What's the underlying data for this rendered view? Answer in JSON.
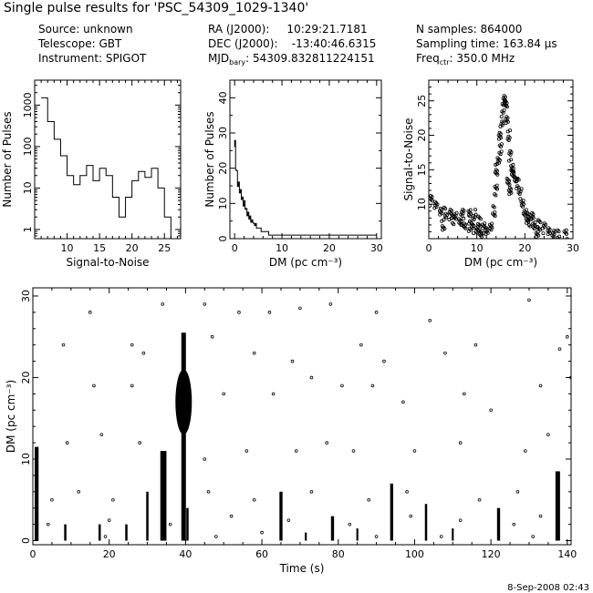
{
  "header": {
    "title": "Single pulse results for 'PSC_54309_1029-1340'",
    "col1": [
      "Source: unknown",
      "Telescope: GBT",
      "Instrument: SPIGOT"
    ],
    "ra": "RA (J2000):     10:29:21.7181",
    "dec": "DEC (J2000):    -13:40:46.6315",
    "mjd_label": "MJD",
    "mjd_sub": "bary",
    "mjd_value": ": 54309.832811224151",
    "nsamples": "N samples: 864000",
    "sampling": "Sampling time: 163.84 µs",
    "freq_label": "Freq",
    "freq_sub": "ctr",
    "freq_value": ": 350.0 MHz"
  },
  "footer": {
    "date": "8-Sep-2008 02:43"
  },
  "colors": {
    "ink": "#000000",
    "background": "#ffffff"
  },
  "chart_data": [
    {
      "type": "bar",
      "style": "step-histogram",
      "xlabel": "Signal-to-Noise",
      "ylabel": "Number of Pulses",
      "yscale": "log",
      "xlim": [
        5,
        27.5
      ],
      "ylim": [
        0.6,
        4000
      ],
      "xticks": [
        10,
        15,
        20,
        25
      ],
      "yticks": [
        1,
        10,
        100,
        1000
      ],
      "bin_edges": [
        6,
        7,
        8,
        9,
        10,
        11,
        12,
        13,
        14,
        15,
        16,
        17,
        18,
        19,
        20,
        21,
        22,
        23,
        24,
        25,
        26
      ],
      "values": [
        1500,
        400,
        150,
        60,
        20,
        12,
        20,
        35,
        15,
        30,
        20,
        6,
        2,
        6,
        15,
        25,
        18,
        30,
        10,
        2
      ]
    },
    {
      "type": "bar",
      "style": "step-histogram",
      "xlabel": "DM (pc cm⁻³)",
      "ylabel": "Number of Pulses",
      "xlim": [
        -1,
        31
      ],
      "ylim": [
        0,
        45
      ],
      "xticks": [
        0,
        10,
        20,
        30
      ],
      "yticks": [
        0,
        10,
        20,
        30,
        40
      ],
      "dm_step": 0.2,
      "values": [
        26,
        21,
        18,
        16,
        15,
        14,
        13,
        12,
        11,
        10,
        10,
        9,
        8,
        7,
        7,
        6,
        6,
        5,
        5,
        5,
        4,
        4,
        4,
        3,
        3,
        3,
        3,
        3,
        2,
        2,
        2,
        2,
        2,
        2,
        2,
        2,
        1,
        1,
        1,
        1,
        1,
        1,
        1,
        1,
        1,
        1,
        1,
        1,
        1,
        1,
        1,
        1,
        1,
        1,
        1,
        1,
        1,
        1,
        1,
        1,
        1,
        1,
        1,
        1,
        1,
        1,
        1,
        1,
        1,
        1,
        1,
        1,
        1,
        1,
        1,
        1,
        1,
        1,
        1,
        1,
        1,
        1,
        1,
        1,
        1,
        1,
        1,
        1,
        1,
        1,
        1,
        1,
        1,
        1,
        1,
        1,
        1,
        1,
        1,
        1,
        1,
        1,
        1,
        1,
        1,
        1,
        1,
        1,
        1,
        1,
        1,
        1,
        1,
        1,
        1,
        1,
        1,
        1,
        1,
        1,
        1,
        1,
        1,
        1,
        1,
        1,
        1,
        1,
        1,
        1,
        1,
        1,
        1,
        1,
        1,
        1,
        1,
        1,
        1,
        1,
        1,
        1,
        1,
        1,
        1,
        1,
        1,
        1,
        1,
        1
      ]
    },
    {
      "type": "scatter",
      "xlabel": "DM (pc cm⁻³)",
      "ylabel": "Signal-to-Noise",
      "xlim": [
        0,
        30
      ],
      "ylim": [
        5,
        28
      ],
      "xticks": [
        0,
        10,
        20,
        30
      ],
      "yticks": [
        10,
        15,
        20,
        25
      ],
      "points": [
        [
          0.5,
          10.5
        ],
        [
          1.5,
          9.8
        ],
        [
          2.5,
          9.2
        ],
        [
          3.5,
          8.8
        ],
        [
          4.5,
          8.5
        ],
        [
          5.5,
          8.0
        ],
        [
          6.5,
          7.5
        ],
        [
          7.5,
          7.2
        ],
        [
          8.5,
          6.8
        ],
        [
          9.2,
          6.5
        ],
        [
          10.0,
          6.2
        ],
        [
          10.8,
          6.0
        ],
        [
          3.0,
          7.0
        ],
        [
          5.0,
          7.8
        ],
        [
          7.0,
          8.5
        ],
        [
          8.5,
          8.8
        ],
        [
          9.5,
          8.5
        ],
        [
          10.5,
          7.5
        ],
        [
          11.5,
          6.5
        ],
        [
          12.0,
          6.0
        ],
        [
          13.0,
          7.0
        ],
        [
          13.5,
          9.0
        ],
        [
          14.0,
          12.0
        ],
        [
          14.5,
          16.0
        ],
        [
          14.8,
          20.0
        ],
        [
          15.2,
          22.0
        ],
        [
          15.5,
          24.0
        ],
        [
          15.8,
          25.0
        ],
        [
          16.0,
          24.5
        ],
        [
          16.3,
          22.5
        ],
        [
          16.6,
          20.0
        ],
        [
          17.0,
          17.0
        ],
        [
          17.3,
          15.0
        ],
        [
          17.5,
          14.5
        ],
        [
          18.0,
          14.0
        ],
        [
          18.5,
          13.0
        ],
        [
          19.0,
          11.5
        ],
        [
          19.5,
          10.0
        ],
        [
          20.0,
          9.0
        ],
        [
          20.5,
          8.0
        ],
        [
          21.0,
          7.5
        ],
        [
          21.5,
          8.0
        ],
        [
          22.0,
          7.0
        ],
        [
          22.5,
          6.0
        ],
        [
          23.0,
          7.0
        ],
        [
          24.0,
          6.5
        ],
        [
          25.0,
          6.0
        ],
        [
          26.0,
          6.0
        ],
        [
          27.0,
          5.5
        ],
        [
          28.5,
          5.5
        ],
        [
          16.5,
          13.0
        ],
        [
          17.0,
          12.0
        ],
        [
          14.0,
          15.0
        ],
        [
          15.0,
          18.0
        ]
      ]
    },
    {
      "type": "scatter",
      "xlabel": "Time (s)",
      "ylabel": "DM (pc cm⁻³)",
      "xlim": [
        0,
        141
      ],
      "ylim": [
        -0.5,
        31
      ],
      "xticks": [
        0,
        20,
        40,
        60,
        80,
        100,
        120,
        140
      ],
      "yticks": [
        0,
        10,
        20,
        30
      ],
      "pulse_columns": [
        {
          "t": 1.0,
          "dm_top": 11.5,
          "width": 1.0
        },
        {
          "t": 8.5,
          "dm_top": 2.0,
          "width": 0.6
        },
        {
          "t": 17.5,
          "dm_top": 2.0,
          "width": 0.6
        },
        {
          "t": 24.5,
          "dm_top": 2.0,
          "width": 0.6
        },
        {
          "t": 30.0,
          "dm_top": 6.0,
          "width": 0.6
        },
        {
          "t": 34.2,
          "dm_top": 11.0,
          "width": 1.6
        },
        {
          "t": 39.5,
          "dm_top": 25.5,
          "width": 1.2
        },
        {
          "t": 40.5,
          "dm_top": 4.0,
          "width": 0.6
        },
        {
          "t": 65.0,
          "dm_top": 6.0,
          "width": 0.8
        },
        {
          "t": 71.5,
          "dm_top": 1.0,
          "width": 0.5
        },
        {
          "t": 78.5,
          "dm_top": 3.0,
          "width": 0.8
        },
        {
          "t": 85.0,
          "dm_top": 1.5,
          "width": 0.5
        },
        {
          "t": 94.0,
          "dm_top": 7.0,
          "width": 0.8
        },
        {
          "t": 103.0,
          "dm_top": 4.5,
          "width": 0.6
        },
        {
          "t": 110.0,
          "dm_top": 1.5,
          "width": 0.5
        },
        {
          "t": 122.0,
          "dm_top": 4.0,
          "width": 0.8
        },
        {
          "t": 137.5,
          "dm_top": 8.5,
          "width": 1.2
        }
      ],
      "strong_pulse_blob": {
        "t": 39.5,
        "dm_min": 13,
        "dm_max": 21
      },
      "points": [
        [
          15.0,
          28.0
        ],
        [
          34.0,
          29.0
        ],
        [
          45.0,
          29.0
        ],
        [
          54.0,
          28.0
        ],
        [
          62.0,
          28.0
        ],
        [
          70.0,
          28.5
        ],
        [
          78.0,
          29.0
        ],
        [
          90.0,
          28.0
        ],
        [
          104.0,
          27.0
        ],
        [
          130.0,
          29.5
        ],
        [
          8.0,
          24.0
        ],
        [
          26.0,
          24.0
        ],
        [
          29.0,
          23.0
        ],
        [
          47.0,
          25.0
        ],
        [
          58.0,
          23.0
        ],
        [
          68.0,
          22.0
        ],
        [
          86.0,
          24.0
        ],
        [
          92.0,
          22.0
        ],
        [
          108.0,
          23.0
        ],
        [
          116.0,
          24.0
        ],
        [
          138.0,
          23.5
        ],
        [
          140.0,
          25.0
        ],
        [
          16.0,
          19.0
        ],
        [
          26.0,
          19.0
        ],
        [
          50.0,
          18.0
        ],
        [
          63.0,
          18.0
        ],
        [
          73.0,
          20.0
        ],
        [
          81.0,
          19.0
        ],
        [
          89.0,
          19.0
        ],
        [
          97.0,
          17.0
        ],
        [
          113.0,
          18.0
        ],
        [
          120.0,
          16.0
        ],
        [
          133.0,
          19.0
        ],
        [
          141.0,
          20.0
        ],
        [
          9.0,
          12.0
        ],
        [
          18.0,
          13.0
        ],
        [
          28.0,
          12.0
        ],
        [
          45.0,
          10.0
        ],
        [
          56.0,
          11.0
        ],
        [
          69.0,
          11.0
        ],
        [
          77.0,
          12.0
        ],
        [
          84.0,
          11.0
        ],
        [
          100.0,
          11.0
        ],
        [
          112.0,
          12.0
        ],
        [
          129.0,
          11.0
        ],
        [
          135.0,
          13.0
        ],
        [
          5.0,
          5.0
        ],
        [
          12.0,
          6.0
        ],
        [
          21.0,
          5.0
        ],
        [
          46.0,
          6.0
        ],
        [
          58.0,
          5.0
        ],
        [
          73.0,
          6.0
        ],
        [
          88.0,
          5.0
        ],
        [
          98.0,
          6.0
        ],
        [
          117.0,
          5.0
        ],
        [
          127.0,
          6.0
        ],
        [
          4.0,
          2.0
        ],
        [
          20.0,
          2.5
        ],
        [
          36.0,
          2.0
        ],
        [
          52.0,
          3.0
        ],
        [
          67.0,
          2.5
        ],
        [
          83.0,
          2.0
        ],
        [
          99.0,
          3.0
        ],
        [
          112.0,
          2.5
        ],
        [
          126.0,
          2.0
        ],
        [
          133.0,
          3.0
        ],
        [
          19.0,
          0.5
        ],
        [
          48.0,
          0.5
        ],
        [
          60.0,
          1.0
        ],
        [
          90.0,
          0.5
        ],
        [
          107.0,
          0.5
        ],
        [
          131.0,
          0.5
        ]
      ]
    }
  ]
}
